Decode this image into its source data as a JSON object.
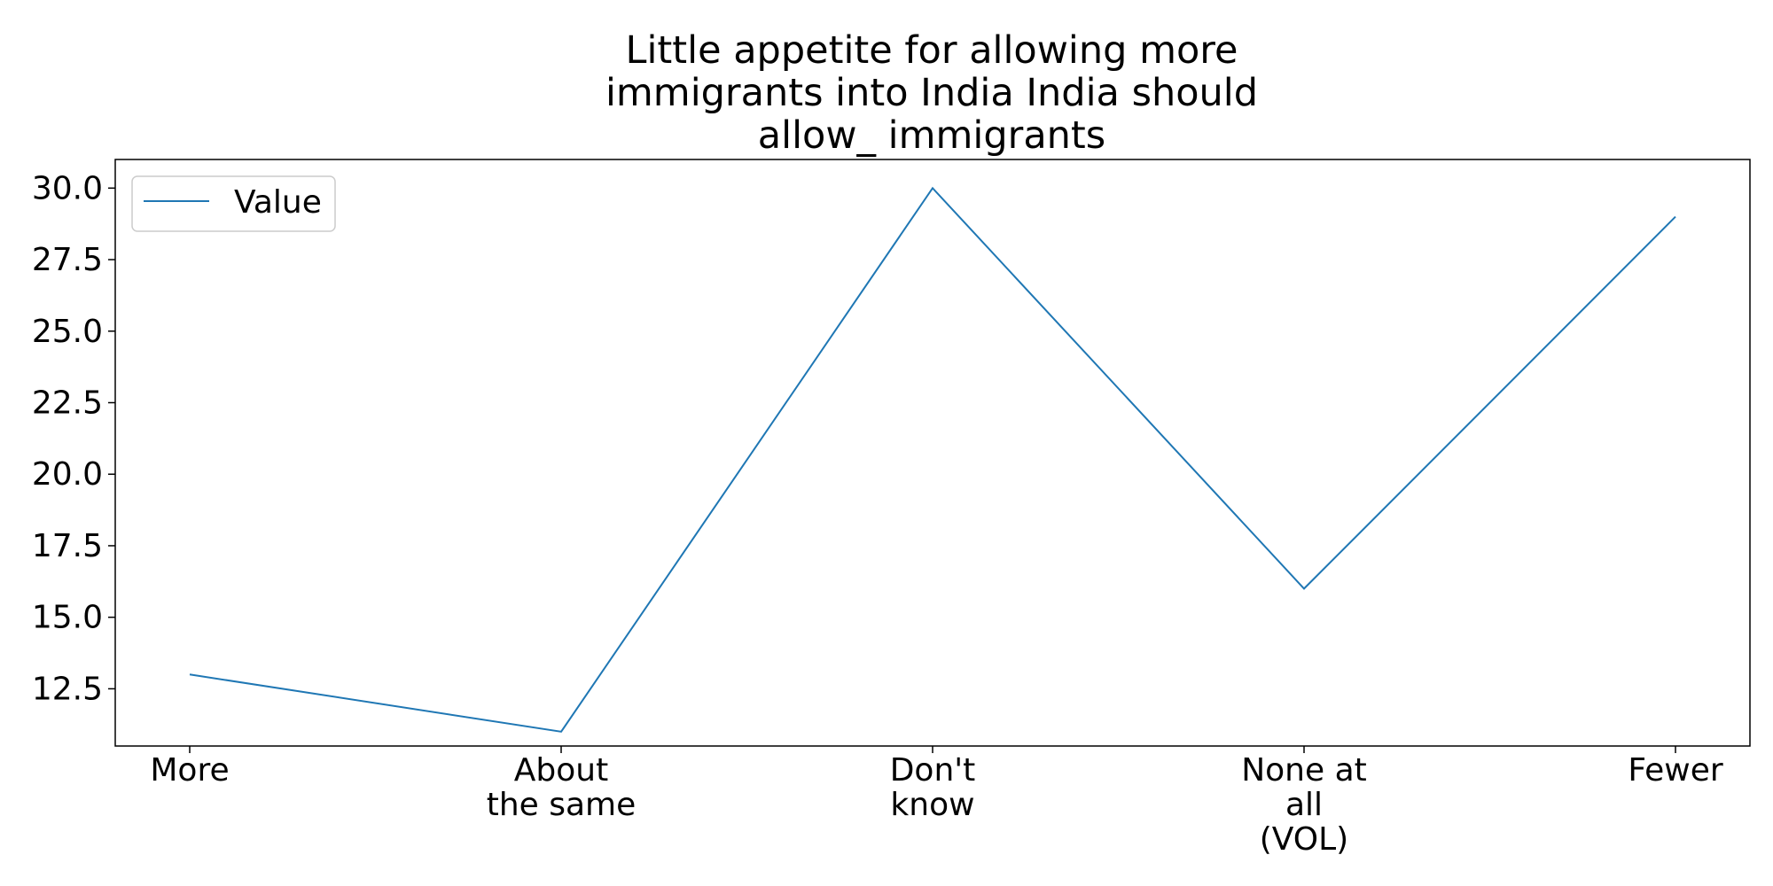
{
  "chart_data": {
    "type": "line",
    "title_lines": [
      "Little appetite for allowing more",
      "immigrants into India India should",
      "allow_ immigrants"
    ],
    "xlabel": "",
    "ylabel": "",
    "categories": [
      [
        "More"
      ],
      [
        "About",
        "the same"
      ],
      [
        "Don't",
        "know"
      ],
      [
        "None at",
        "all",
        "(VOL)"
      ],
      [
        "Fewer"
      ]
    ],
    "series": [
      {
        "name": "Value",
        "values": [
          13,
          11,
          30,
          16,
          29
        ]
      }
    ],
    "ylim": [
      10.5,
      31
    ],
    "yticks": [
      "12.5",
      "15.0",
      "17.5",
      "20.0",
      "22.5",
      "25.0",
      "27.5",
      "30.0"
    ],
    "grid": false,
    "legend_position": "upper-left",
    "line_color": "#1f77b4"
  }
}
